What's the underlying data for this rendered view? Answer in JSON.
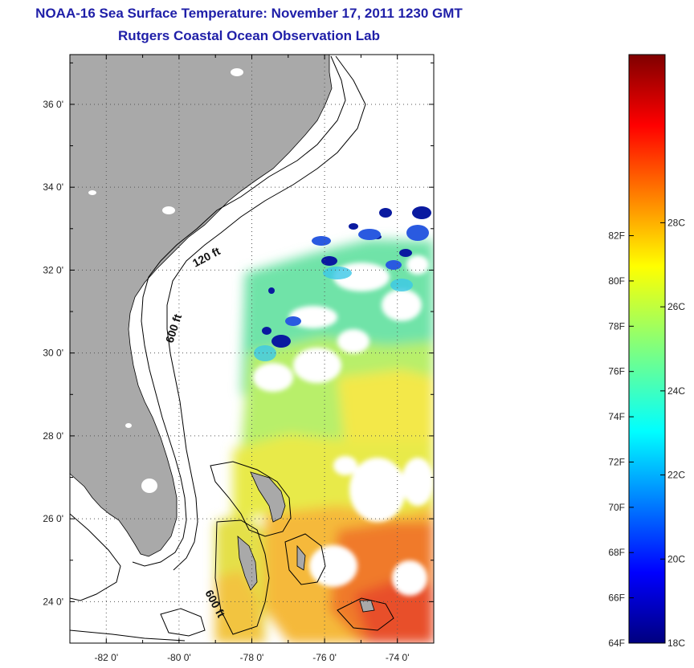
{
  "header": {
    "title": "NOAA-16 Sea Surface Temperature:  November 17, 2011 1230 GMT",
    "subtitle": "Rutgers Coastal Ocean Observation Lab"
  },
  "map": {
    "region": "US Southeast coast and Bahamas",
    "lon_range": [
      -83,
      -73
    ],
    "lat_range": [
      23,
      37.2
    ],
    "grid": "dotted",
    "lon_ticks": [
      {
        "value": -82,
        "label": "-82 0'"
      },
      {
        "value": -80,
        "label": "-80 0'"
      },
      {
        "value": -78,
        "label": "-78 0'"
      },
      {
        "value": -76,
        "label": "-76 0'"
      },
      {
        "value": -74,
        "label": "-74 0'"
      }
    ],
    "lat_ticks": [
      {
        "value": 36,
        "label": "36 0'"
      },
      {
        "value": 34,
        "label": "34 0'"
      },
      {
        "value": 32,
        "label": "32 0'"
      },
      {
        "value": 30,
        "label": "30 0'"
      },
      {
        "value": 28,
        "label": "28 0'"
      },
      {
        "value": 26,
        "label": "26 0'"
      },
      {
        "value": 24,
        "label": "24 0'"
      }
    ],
    "depth_labels": {
      "shelf_120": "120 ft",
      "slope_600_north": "600 ft",
      "slope_600_south": "600 ft"
    },
    "colors": {
      "land": "#a9a9a9",
      "contour": "#000000",
      "grid": "#555555"
    }
  },
  "colorbar": {
    "range_f": [
      64,
      90
    ],
    "range_c": [
      18,
      32
    ],
    "fahrenheit": [
      {
        "value": 64,
        "label": "64F"
      },
      {
        "value": 66,
        "label": "66F"
      },
      {
        "value": 68,
        "label": "68F"
      },
      {
        "value": 70,
        "label": "70F"
      },
      {
        "value": 72,
        "label": "72F"
      },
      {
        "value": 74,
        "label": "74F"
      },
      {
        "value": 76,
        "label": "76F"
      },
      {
        "value": 78,
        "label": "78F"
      },
      {
        "value": 80,
        "label": "80F"
      },
      {
        "value": 82,
        "label": "82F"
      }
    ],
    "celsius": [
      {
        "value": 18,
        "label": "18C"
      },
      {
        "value": 20,
        "label": "20C"
      },
      {
        "value": 22,
        "label": "22C"
      },
      {
        "value": 24,
        "label": "24C"
      },
      {
        "value": 26,
        "label": "26C"
      },
      {
        "value": 28,
        "label": "28C"
      }
    ],
    "colormap": "jet"
  }
}
